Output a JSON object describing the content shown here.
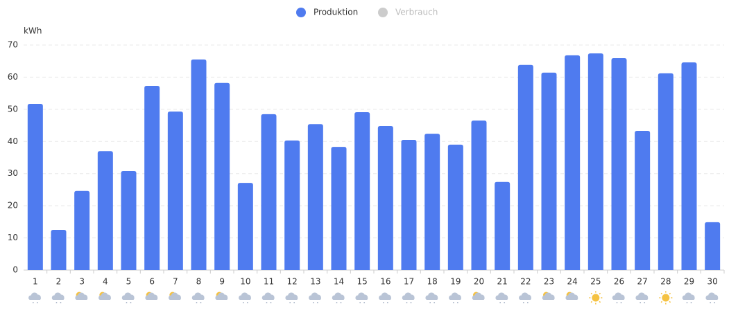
{
  "chart_data": {
    "type": "bar",
    "y_label": "kWh",
    "categories": [
      "1",
      "2",
      "3",
      "4",
      "5",
      "6",
      "7",
      "8",
      "9",
      "10",
      "11",
      "12",
      "13",
      "14",
      "15",
      "16",
      "17",
      "18",
      "19",
      "20",
      "21",
      "22",
      "23",
      "24",
      "25",
      "26",
      "27",
      "28",
      "29",
      "30"
    ],
    "series": [
      {
        "name": "Produktion",
        "color": "#4f7bef",
        "visible": true,
        "values": [
          51.7,
          12.5,
          24.6,
          37,
          30.8,
          57.3,
          49.3,
          65.5,
          58.2,
          27.1,
          48.5,
          40.3,
          45.4,
          38.3,
          49.1,
          44.8,
          40.5,
          42.4,
          39,
          46.5,
          27.4,
          63.8,
          61.4,
          66.8,
          67.4,
          65.9,
          43.3,
          61.2,
          64.6,
          14.9
        ]
      },
      {
        "name": "Verbrauch",
        "color": "#cccccc",
        "visible": false,
        "values": [
          null,
          null,
          null,
          null,
          null,
          null,
          null,
          null,
          null,
          null,
          null,
          null,
          null,
          null,
          null,
          null,
          null,
          null,
          null,
          null,
          null,
          null,
          null,
          null,
          null,
          null,
          null,
          null,
          null,
          null
        ]
      }
    ],
    "ylim": [
      0,
      70
    ],
    "yticks": [
      0,
      10,
      20,
      30,
      40,
      50,
      60,
      70
    ],
    "grid": true
  }
}
